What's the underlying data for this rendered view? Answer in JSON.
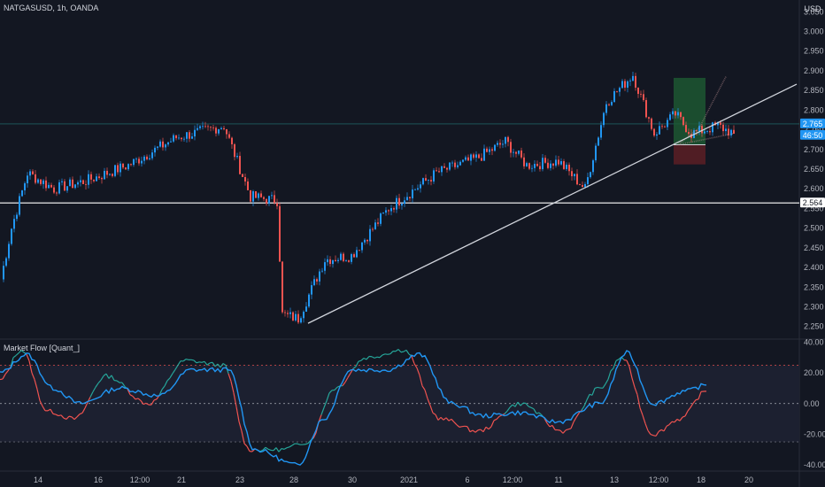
{
  "header": {
    "symbol_label": "NATGASUSD, 1h, OANDA",
    "currency": "USD"
  },
  "indicator": {
    "label": "Market Flow [Quant_]"
  },
  "badges": {
    "price": "2.765",
    "countdown": "46:50",
    "level": "2.564"
  },
  "colors": {
    "bg": "#131722",
    "up": "#2196f3",
    "down": "#ef5350",
    "flow": "#2196f3",
    "flow_fast_up": "#26a69a",
    "trend": "#d1d4dc"
  },
  "chart_data": [
    {
      "type": "candlestick",
      "title": "NATGASUSD, 1h, OANDA",
      "y_ticks": [
        "2.250",
        "2.300",
        "2.350",
        "2.400",
        "2.450",
        "2.500",
        "2.550",
        "2.600",
        "2.650",
        "2.700",
        "2.750",
        "2.800",
        "2.850",
        "2.900",
        "2.950",
        "3.000",
        "3.050"
      ],
      "ylim": [
        2.22,
        3.08
      ],
      "x_ticks": [
        "14",
        "16",
        "12:00",
        "21",
        "23",
        "28",
        "30",
        "2021",
        "6",
        "12:00",
        "11",
        "13",
        "12:00",
        "18",
        "20"
      ],
      "key_points": [
        {
          "i": 0,
          "price": 2.37
        },
        {
          "i": 4,
          "price": 2.5
        },
        {
          "i": 10,
          "price": 2.64
        },
        {
          "i": 20,
          "price": 2.6
        },
        {
          "i": 32,
          "price": 2.62
        },
        {
          "i": 48,
          "price": 2.66
        },
        {
          "i": 66,
          "price": 2.73
        },
        {
          "i": 84,
          "price": 2.76
        },
        {
          "i": 94,
          "price": 2.58
        },
        {
          "i": 104,
          "price": 2.57
        },
        {
          "i": 106,
          "price": 2.28
        },
        {
          "i": 112,
          "price": 2.27
        },
        {
          "i": 122,
          "price": 2.42
        },
        {
          "i": 132,
          "price": 2.43
        },
        {
          "i": 146,
          "price": 2.55
        },
        {
          "i": 164,
          "price": 2.64
        },
        {
          "i": 180,
          "price": 2.68
        },
        {
          "i": 190,
          "price": 2.72
        },
        {
          "i": 198,
          "price": 2.66
        },
        {
          "i": 210,
          "price": 2.67
        },
        {
          "i": 220,
          "price": 2.6
        },
        {
          "i": 228,
          "price": 2.82
        },
        {
          "i": 238,
          "price": 2.89
        },
        {
          "i": 246,
          "price": 2.74
        },
        {
          "i": 254,
          "price": 2.79
        },
        {
          "i": 260,
          "price": 2.74
        },
        {
          "i": 270,
          "price": 2.76
        },
        {
          "i": 276,
          "price": 2.74
        }
      ],
      "horizontal_levels": [
        2.564,
        2.765
      ],
      "trendline": [
        {
          "i": 116,
          "price": 2.258
        },
        {
          "i": 300,
          "price": 2.866
        }
      ],
      "position": {
        "entry": 2.712,
        "target": 2.882,
        "stop": 2.662
      },
      "projection_end": 2.885
    },
    {
      "type": "line",
      "title": "Market Flow [Quant_]",
      "y_ticks": [
        "40.00",
        "20.00",
        "0.00",
        "-20.00",
        "-40.00"
      ],
      "ylim": [
        -44,
        42
      ],
      "bands": [
        25,
        0,
        -25
      ],
      "slow_key_points": [
        {
          "i": 0,
          "v": 20
        },
        {
          "i": 10,
          "v": 32
        },
        {
          "i": 20,
          "v": 10
        },
        {
          "i": 30,
          "v": 0
        },
        {
          "i": 45,
          "v": 10
        },
        {
          "i": 60,
          "v": 5
        },
        {
          "i": 72,
          "v": 22
        },
        {
          "i": 86,
          "v": 22
        },
        {
          "i": 96,
          "v": -30
        },
        {
          "i": 112,
          "v": -40
        },
        {
          "i": 122,
          "v": -10
        },
        {
          "i": 132,
          "v": 22
        },
        {
          "i": 146,
          "v": 22
        },
        {
          "i": 158,
          "v": 32
        },
        {
          "i": 170,
          "v": 0
        },
        {
          "i": 182,
          "v": -8
        },
        {
          "i": 196,
          "v": -6
        },
        {
          "i": 210,
          "v": -12
        },
        {
          "i": 226,
          "v": 0
        },
        {
          "i": 236,
          "v": 33
        },
        {
          "i": 246,
          "v": 0
        },
        {
          "i": 258,
          "v": 8
        },
        {
          "i": 266,
          "v": 12
        }
      ],
      "fast_key_points": [
        {
          "i": 0,
          "v": 15
        },
        {
          "i": 8,
          "v": 35
        },
        {
          "i": 18,
          "v": -5
        },
        {
          "i": 28,
          "v": -10
        },
        {
          "i": 40,
          "v": 18
        },
        {
          "i": 56,
          "v": 0
        },
        {
          "i": 70,
          "v": 28
        },
        {
          "i": 84,
          "v": 25
        },
        {
          "i": 94,
          "v": -30
        },
        {
          "i": 106,
          "v": -30
        },
        {
          "i": 116,
          "v": -25
        },
        {
          "i": 126,
          "v": 10
        },
        {
          "i": 138,
          "v": 30
        },
        {
          "i": 152,
          "v": 35
        },
        {
          "i": 166,
          "v": -10
        },
        {
          "i": 180,
          "v": -18
        },
        {
          "i": 196,
          "v": 0
        },
        {
          "i": 212,
          "v": -18
        },
        {
          "i": 226,
          "v": 10
        },
        {
          "i": 234,
          "v": 30
        },
        {
          "i": 246,
          "v": -20
        },
        {
          "i": 256,
          "v": -10
        },
        {
          "i": 266,
          "v": 8
        }
      ]
    }
  ]
}
